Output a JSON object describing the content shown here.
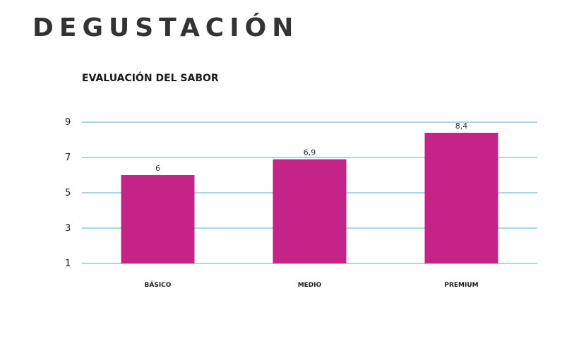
{
  "header": {
    "title": "DEGUSTACIÓN"
  },
  "colors": {
    "bar": "#c42487",
    "grid": "#8fcbd6",
    "text": "#333333"
  },
  "chart_data": {
    "type": "bar",
    "title": "EVALUACIÓN DEL SABOR",
    "categories": [
      "BÁSICO",
      "MEDIO",
      "PREMIUM"
    ],
    "values": [
      6,
      6.9,
      8.4
    ],
    "value_labels": [
      "6",
      "6,9",
      "8,4"
    ],
    "ylim": [
      1,
      9
    ],
    "yticks": [
      1,
      3,
      5,
      7,
      9
    ],
    "grid": true,
    "legend": "none"
  }
}
